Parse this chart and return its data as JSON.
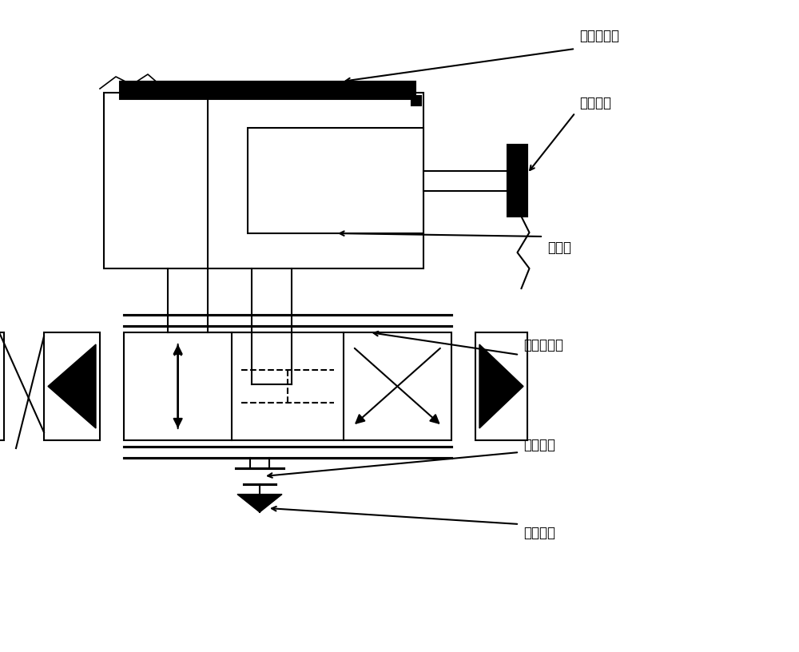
{
  "background_color": "#ffffff",
  "line_color": "#000000",
  "line_width": 1.5,
  "fig_width": 10.0,
  "fig_height": 8.16,
  "labels": {
    "displacement_sensor": "位移传感器",
    "force_sensor": "力传感器",
    "hydraulic_cylinder": "液压缸",
    "servo_valve": "电液伺服阀",
    "oil_tank": "液压油箱",
    "oil_source": "液压油源"
  }
}
